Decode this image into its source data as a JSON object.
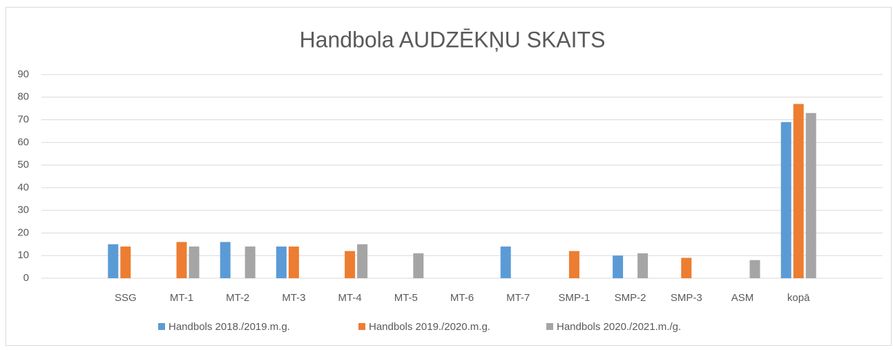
{
  "chart_data": {
    "type": "bar",
    "title": "Handbola AUDZĒKŅU SKAITS",
    "categories": [
      null,
      "SSG",
      "MT-1",
      "MT-2",
      "MT-3",
      "MT-4",
      "MT-5",
      "MT-6",
      "MT-7",
      "SMP-1",
      "SMP-2",
      "SMP-3",
      "ASM",
      "kopā",
      null
    ],
    "series": [
      {
        "name": "Handbols 2018./2019.m.g.",
        "color": "#5b9bd5",
        "values": [
          null,
          15,
          null,
          16,
          14,
          null,
          null,
          null,
          14,
          null,
          10,
          null,
          null,
          69,
          null
        ]
      },
      {
        "name": "Handbols 2019./2020.m.g.",
        "color": "#ed7d31",
        "values": [
          null,
          14,
          16,
          null,
          14,
          12,
          null,
          null,
          null,
          12,
          null,
          9,
          null,
          77,
          null
        ]
      },
      {
        "name": "Handbols 2020./2021.m./g.",
        "color": "#a5a5a5",
        "values": [
          null,
          null,
          14,
          14,
          null,
          15,
          11,
          null,
          null,
          null,
          11,
          null,
          8,
          73,
          null
        ]
      }
    ],
    "ylim": [
      0,
      90
    ],
    "yticks": [
      0,
      10,
      20,
      30,
      40,
      50,
      60,
      70,
      80,
      90
    ],
    "grid": true,
    "legend": "bottom"
  }
}
